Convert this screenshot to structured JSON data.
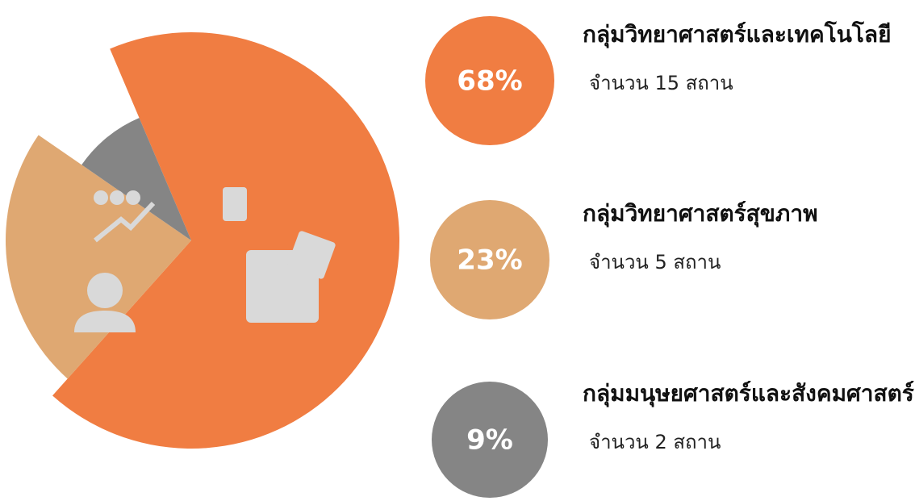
{
  "chart_data": {
    "type": "pie",
    "categories": [
      "กลุ่มวิทยาศาสตร์และเทคโนโลยี",
      "กลุ่มวิทยาศาสตร์สุขภาพ",
      "กลุ่มมนุษยศาสตร์และสังคมศาสตร์"
    ],
    "values": [
      68,
      23,
      9
    ],
    "value_labels": [
      "68%",
      "23%",
      "9%"
    ],
    "descriptions": [
      "จำนวน 15 สถาน",
      "จำนวน 5 สถาน",
      "จำนวน 2 สถาน"
    ],
    "colors": [
      "#f07d42",
      "#dfa872",
      "#858585"
    ]
  }
}
